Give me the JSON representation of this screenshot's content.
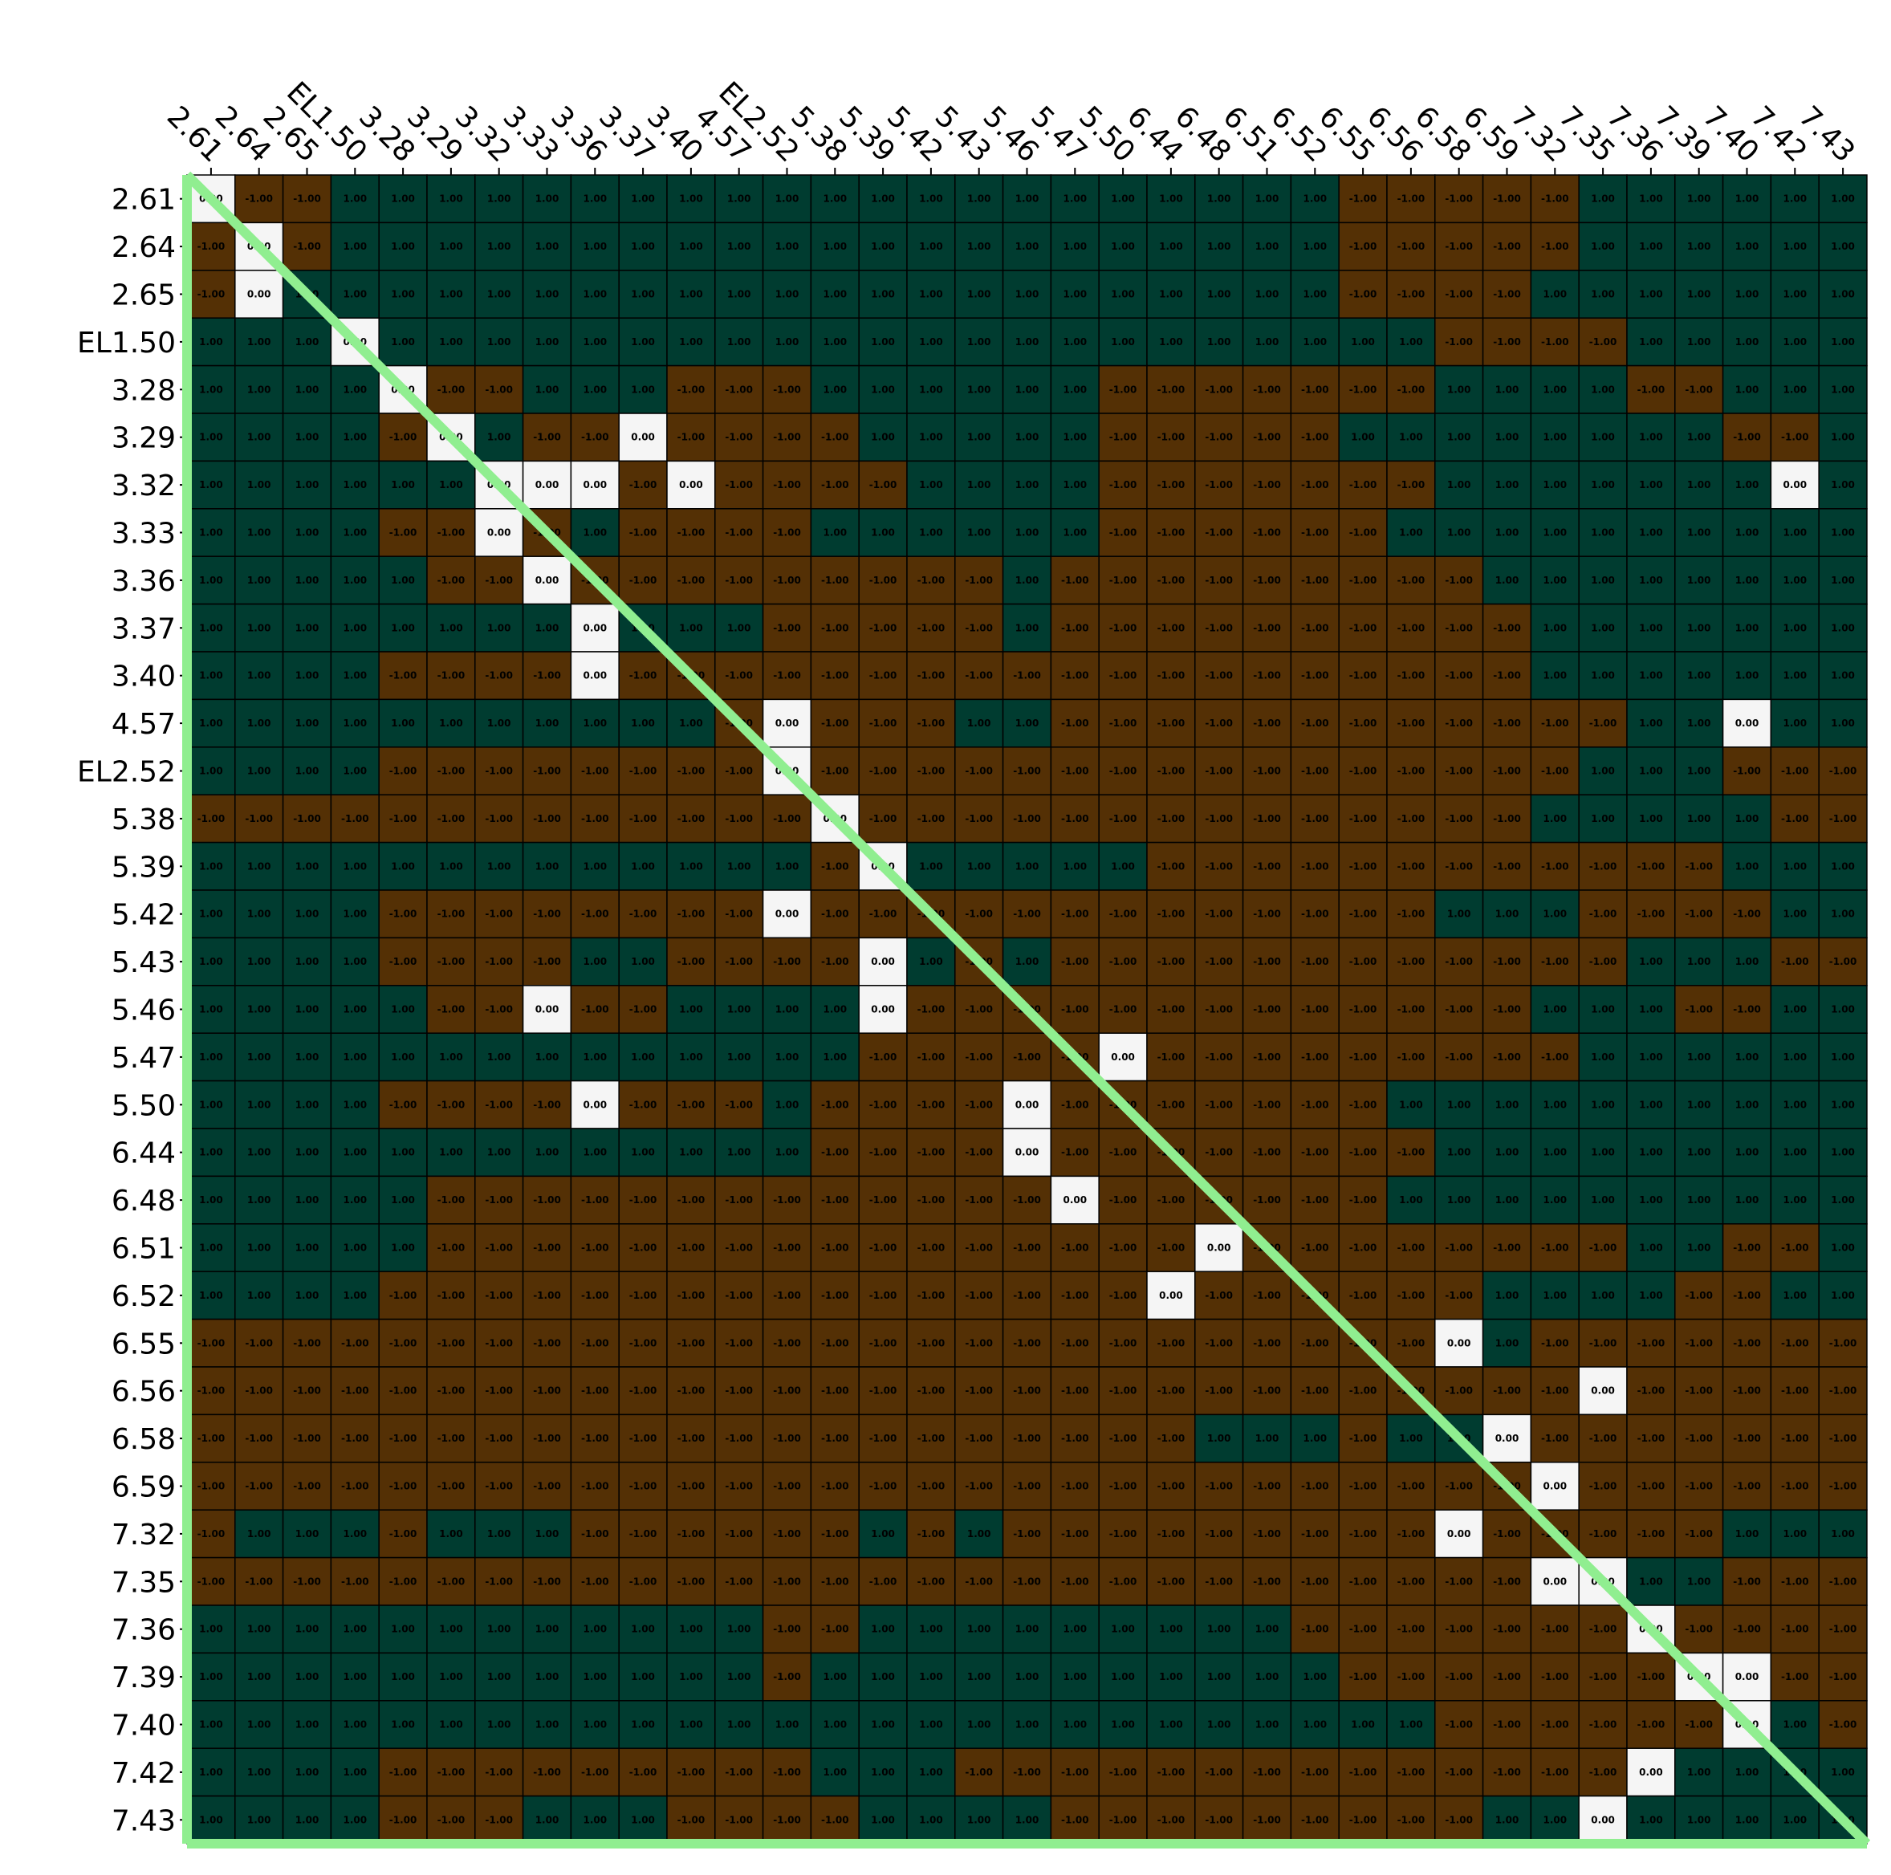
{
  "chart_data": {
    "type": "heatmap",
    "title": "",
    "xlabel": "",
    "ylabel": "",
    "labels": [
      "2.61",
      "2.64",
      "2.65",
      "EL1.50",
      "3.28",
      "3.29",
      "3.32",
      "3.33",
      "3.36",
      "3.37",
      "3.40",
      "4.57",
      "EL2.52",
      "5.38",
      "5.39",
      "5.42",
      "5.43",
      "5.46",
      "5.47",
      "5.50",
      "6.44",
      "6.48",
      "6.51",
      "6.52",
      "6.55",
      "6.56",
      "6.58",
      "6.59",
      "7.32",
      "7.35",
      "7.36",
      "7.39",
      "7.40",
      "7.42",
      "7.43"
    ],
    "value_format": "0.00",
    "colors": {
      "positive": "#003c30",
      "negative": "#543005",
      "zero": "#f5f5f5",
      "diagonal_line": "#90ee90",
      "grid": "#000000"
    },
    "matrix": [
      "0--1111111111111111111111-----1111111",
      "-0-1111111111111111111111-----1111111",
      "-101111111111111111111111----11111111",
      "11101111111111111111111111----1111111",
      "11110-1-1111--1-1111111-------11111--",
      "1111-01--0-1--1-111111-----111111111--",
      "111111000-0-1--1-11111-------111111110",
      "1111--10-11---1-1111111------11111111",
      "11111-1-0--------1-11---------1111111",
      "111111110111---1-1-11----------111111",
      "1111---1-10---------1----------111111",
      "11111111111-0--1-111------------11101",
      "1111--------0----------------1111-1--",
      "-------------0--------1-1-----111111--",
      "1111111111111-011111-1-----------1111-1",
      "1111---1-1-1---0-------------1111----",
      "1111---1-111----01-11------------1111--",
      "11111-1-0-1-111110-------------1111--",
      "11111111111111---1--0---------1111111",
      "1111---1-0-1--11--1--0-------11111111",
      "1111111111111-1-1--0--------1111111",
      "11111-1----1--------10------1111111",
      "11111-1----1-----------0--------111--",
      "1111--------1-1-----1-1-0------11111--",
      "----------------1----------01--------",
      "-----------------------------0-------",
      "---------------------1111-1110-------",
      "--------------------------1--0-------",
      "-1111-1111-1-----11-11---------0-----",
      "-------------------------1-1--0011---",
      "111111111111--1111111111-------0-----",
      "111111111111-111111111111-------00---",
      "11111111111111111111111111------101-1",
      "1111---1-1--1---1111-1-1------------0",
      "1111---1111--1--11111-1-1-------1110"
    ],
    "cell_labels": {
      "positive": "1.00",
      "negative": "-1.00",
      "zero": "0.00"
    }
  }
}
